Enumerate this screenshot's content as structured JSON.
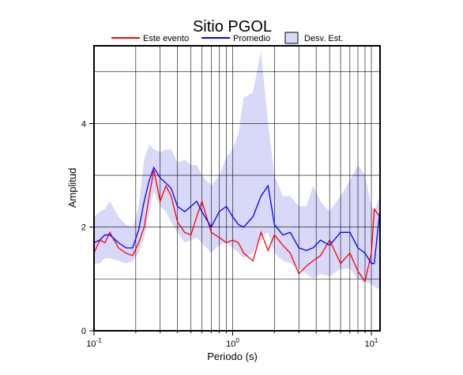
{
  "chart_data": {
    "type": "line",
    "title": "Sitio PGOL",
    "xlabel": "Periodo (s)",
    "ylabel": "Amplitud",
    "xscale": "log",
    "xlim": [
      0.1,
      11.55
    ],
    "ylim": [
      0,
      5.5
    ],
    "xticks": [
      {
        "value": 0.1,
        "label": "10",
        "exponent": "-1"
      },
      {
        "value": 1,
        "label": "10",
        "exponent": "0"
      },
      {
        "value": 10,
        "label": "10",
        "exponent": "1"
      }
    ],
    "xgrid": [
      0.2,
      0.3,
      0.4,
      0.5,
      0.6,
      0.7,
      0.8,
      0.9,
      1,
      2,
      3,
      4,
      5,
      6,
      7,
      8,
      9,
      10
    ],
    "yticks": [
      0,
      2,
      4
    ],
    "ygrid": [
      1,
      2,
      3,
      4,
      5
    ],
    "grid": true,
    "x": [
      0.1,
      0.11,
      0.12,
      0.13,
      0.15,
      0.17,
      0.19,
      0.21,
      0.23,
      0.25,
      0.27,
      0.3,
      0.33,
      0.36,
      0.4,
      0.45,
      0.5,
      0.55,
      0.6,
      0.7,
      0.8,
      0.9,
      1.0,
      1.1,
      1.2,
      1.4,
      1.6,
      1.8,
      2.0,
      2.3,
      2.6,
      3.0,
      3.4,
      3.8,
      4.3,
      5,
      6,
      7,
      8,
      9,
      10,
      10.5,
      11.5
    ],
    "band": {
      "name": "Desv. Est.",
      "color": "#d8d8f8",
      "lower": [
        1.3,
        1.3,
        1.4,
        1.4,
        1.35,
        1.3,
        1.35,
        1.5,
        1.8,
        2.3,
        2.7,
        2.4,
        2.3,
        2.1,
        1.9,
        1.7,
        1.75,
        1.8,
        1.7,
        1.5,
        1.65,
        1.7,
        1.6,
        1.5,
        1.4,
        1.5,
        1.8,
        1.9,
        1.5,
        1.35,
        1.3,
        1.2,
        1.1,
        1.0,
        1.1,
        1.05,
        1.2,
        1.2,
        1.0,
        0.95,
        0.9,
        0.85,
        0.8
      ],
      "upper": [
        2.2,
        2.3,
        2.35,
        2.5,
        2.2,
        2.05,
        2.0,
        2.4,
        3.3,
        3.6,
        3.5,
        3.45,
        3.5,
        3.5,
        3.25,
        3.3,
        3.2,
        3.2,
        3.0,
        2.8,
        3.0,
        3.35,
        3.5,
        3.8,
        4.5,
        4.6,
        5.4,
        4.0,
        3.0,
        2.6,
        2.6,
        2.4,
        2.4,
        2.8,
        2.5,
        2.3,
        2.6,
        2.9,
        3.2,
        3.0,
        2.4,
        2.3,
        2.6
      ]
    },
    "series": [
      {
        "name": "Este evento",
        "color": "#ff0000",
        "values": [
          1.5,
          1.75,
          1.7,
          1.9,
          1.6,
          1.5,
          1.45,
          1.7,
          2.0,
          2.6,
          3.1,
          2.5,
          2.8,
          2.6,
          2.1,
          1.9,
          1.85,
          2.2,
          2.5,
          1.9,
          1.8,
          1.7,
          1.75,
          1.7,
          1.5,
          1.35,
          1.9,
          1.55,
          1.85,
          1.65,
          1.5,
          1.1,
          1.25,
          1.35,
          1.45,
          1.75,
          1.3,
          1.5,
          1.15,
          0.95,
          1.5,
          2.35,
          2.2
        ]
      },
      {
        "name": "Promedio",
        "color": "#0000ff",
        "values": [
          1.7,
          1.75,
          1.85,
          1.85,
          1.7,
          1.6,
          1.6,
          1.95,
          2.5,
          2.9,
          3.15,
          2.95,
          2.85,
          2.75,
          2.4,
          2.3,
          2.4,
          2.5,
          2.3,
          2.0,
          2.3,
          2.4,
          2.2,
          2.05,
          2.0,
          2.2,
          2.6,
          2.8,
          2.05,
          1.85,
          1.9,
          1.6,
          1.55,
          1.6,
          1.75,
          1.65,
          1.9,
          1.9,
          1.6,
          1.5,
          1.3,
          1.3,
          2.3
        ]
      }
    ]
  }
}
